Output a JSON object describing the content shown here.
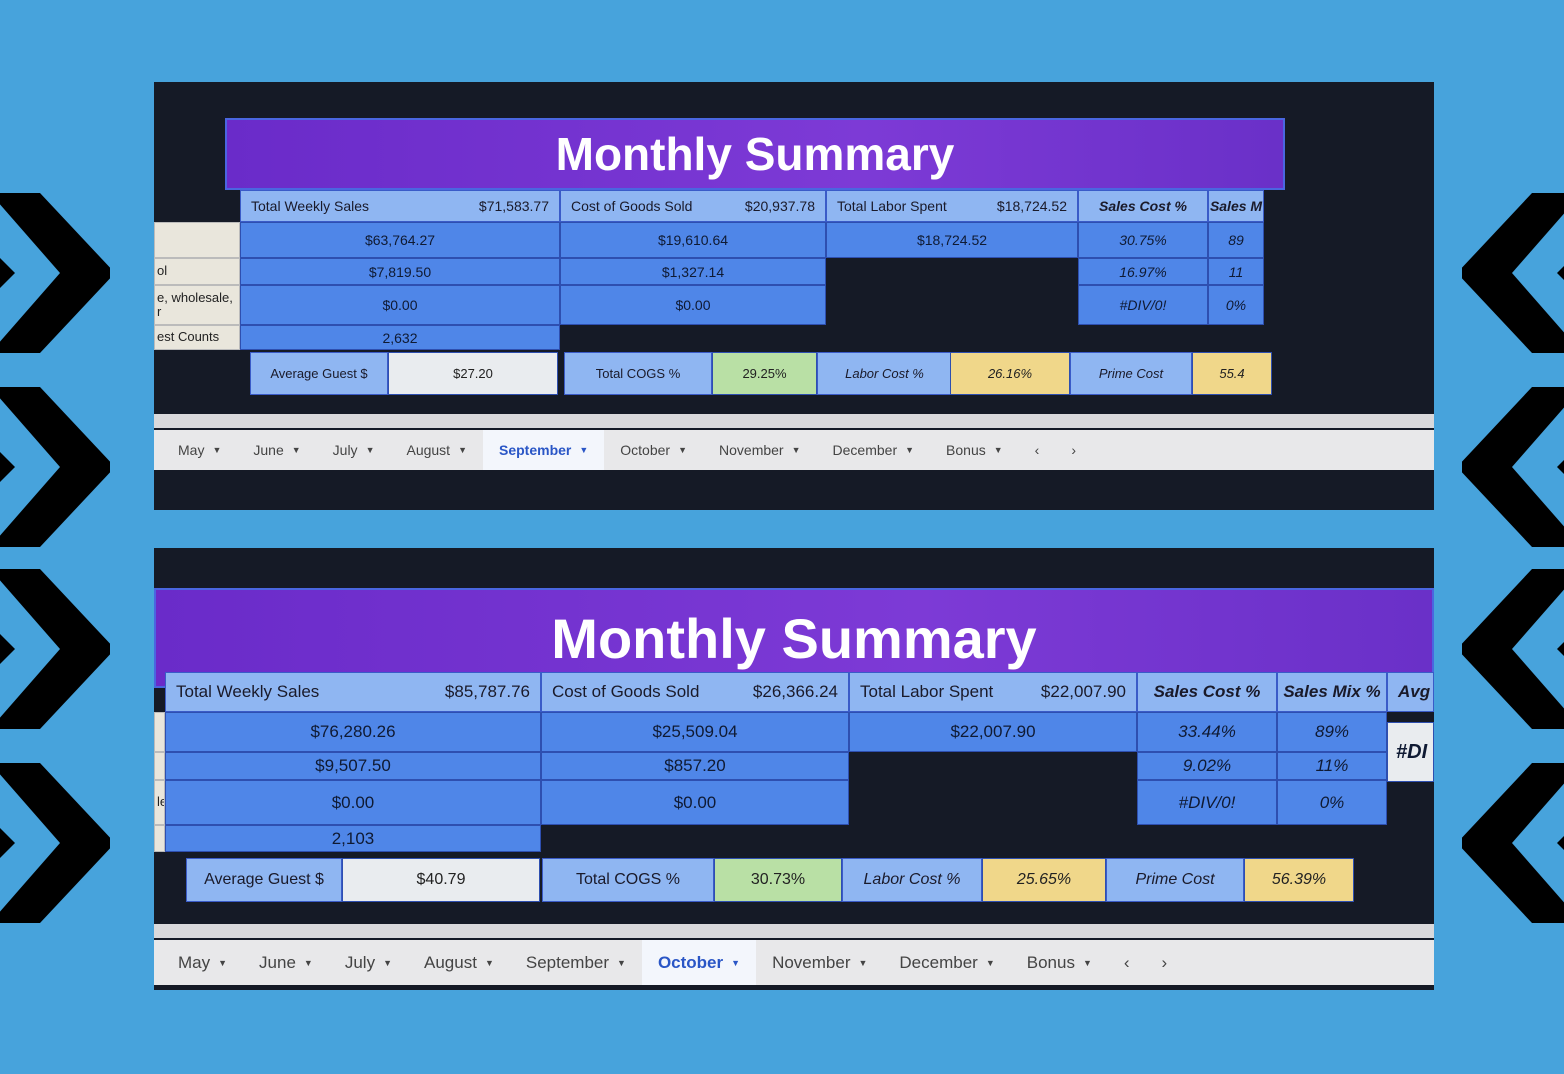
{
  "colors": {
    "background": "#47a3dc",
    "title_bar": "#6a2bc9",
    "header_cell": "#8fb6f2",
    "value_cell": "#4f86e8",
    "cogs_pct": "#b9e0a5",
    "labor_pct": "#f0d78a",
    "prime_cost": "#f0d78a",
    "avg_guest": "#e9ecef"
  },
  "panels": [
    {
      "title": "Monthly Summary",
      "row_labels": [
        "",
        "ol",
        "e, wholesale,\nr",
        "est Counts"
      ],
      "sales": {
        "label": "Total Weekly Sales",
        "total": "$71,583.77",
        "rows": [
          "$63,764.27",
          "$7,819.50",
          "$0.00",
          "2,632"
        ]
      },
      "cogs": {
        "label": "Cost of Goods Sold",
        "total": "$20,937.78",
        "rows": [
          "$19,610.64",
          "$1,327.14",
          "$0.00"
        ]
      },
      "labor": {
        "label": "Total Labor Spent",
        "total": "$18,724.52",
        "rows": [
          "$18,724.52"
        ]
      },
      "sales_cost": {
        "label": "Sales Cost %",
        "rows": [
          "30.75%",
          "16.97%",
          "#DIV/0!"
        ]
      },
      "sales_mix": {
        "label": "Sales M",
        "rows": [
          "89",
          "11",
          "0%"
        ]
      },
      "avg_col": {
        "label": "",
        "value": ""
      },
      "bottom": {
        "avg_guest_label": "Average Guest $",
        "avg_guest": "$27.20",
        "cogs_pct_label": "Total COGS %",
        "cogs_pct": "29.25%",
        "labor_pct_label": "Labor Cost %",
        "labor_pct": "26.16%",
        "prime_label": "Prime Cost",
        "prime": "55.4"
      },
      "tabs": [
        "May",
        "June",
        "July",
        "August",
        "September",
        "October",
        "November",
        "December",
        "Bonus"
      ],
      "active_tab": "September"
    },
    {
      "title": "Monthly Summary",
      "row_labels": [
        "",
        "",
        "le,",
        ""
      ],
      "sales": {
        "label": "Total Weekly Sales",
        "total": "$85,787.76",
        "rows": [
          "$76,280.26",
          "$9,507.50",
          "$0.00",
          "2,103"
        ]
      },
      "cogs": {
        "label": "Cost of Goods Sold",
        "total": "$26,366.24",
        "rows": [
          "$25,509.04",
          "$857.20",
          "$0.00"
        ]
      },
      "labor": {
        "label": "Total Labor Spent",
        "total": "$22,007.90",
        "rows": [
          "$22,007.90"
        ]
      },
      "sales_cost": {
        "label": "Sales Cost %",
        "rows": [
          "33.44%",
          "9.02%",
          "#DIV/0!"
        ]
      },
      "sales_mix": {
        "label": "Sales Mix %",
        "rows": [
          "89%",
          "11%",
          "0%"
        ]
      },
      "avg_col": {
        "label": "Avg",
        "value": "#DI"
      },
      "bottom": {
        "avg_guest_label": "Average Guest $",
        "avg_guest": "$40.79",
        "cogs_pct_label": "Total COGS %",
        "cogs_pct": "30.73%",
        "labor_pct_label": "Labor Cost %",
        "labor_pct": "25.65%",
        "prime_label": "Prime Cost",
        "prime": "56.39%"
      },
      "tabs": [
        "May",
        "June",
        "July",
        "August",
        "September",
        "October",
        "November",
        "December",
        "Bonus"
      ],
      "active_tab": "October"
    }
  ]
}
